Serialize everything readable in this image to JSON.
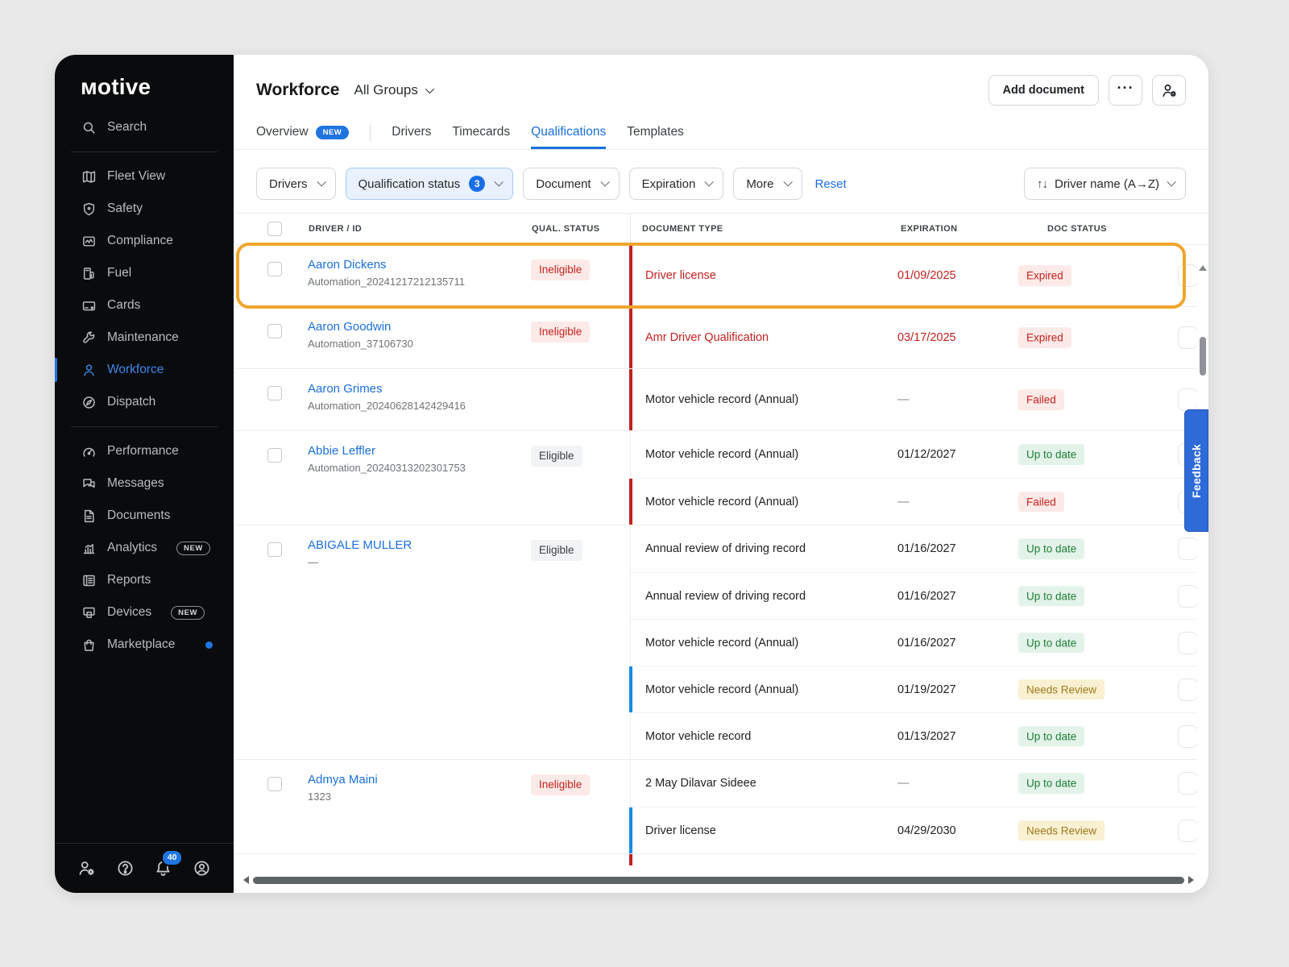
{
  "sidebar": {
    "logo_text": "ᴍotive",
    "search": {
      "label": "Search",
      "icon": "search"
    },
    "nav_primary": [
      {
        "label": "Fleet View",
        "icon": "map"
      },
      {
        "label": "Safety",
        "icon": "shield"
      },
      {
        "label": "Compliance",
        "icon": "compliance"
      },
      {
        "label": "Fuel",
        "icon": "fuel"
      },
      {
        "label": "Cards",
        "icon": "card"
      },
      {
        "label": "Maintenance",
        "icon": "wrench"
      },
      {
        "label": "Workforce",
        "icon": "person",
        "active": true
      },
      {
        "label": "Dispatch",
        "icon": "dispatch"
      }
    ],
    "nav_secondary": [
      {
        "label": "Performance",
        "icon": "gauge"
      },
      {
        "label": "Messages",
        "icon": "chat"
      },
      {
        "label": "Documents",
        "icon": "document"
      },
      {
        "label": "Analytics",
        "icon": "chart",
        "badge": "NEW"
      },
      {
        "label": "Reports",
        "icon": "report"
      },
      {
        "label": "Devices",
        "icon": "devices",
        "badge": "NEW"
      },
      {
        "label": "Marketplace",
        "icon": "bag",
        "dot": true
      }
    ],
    "footer_icons": [
      {
        "name": "manage-users",
        "icon": "person-gear"
      },
      {
        "name": "help",
        "icon": "help"
      },
      {
        "name": "notifications",
        "icon": "bell",
        "badge": "40"
      },
      {
        "name": "account",
        "icon": "avatar"
      }
    ]
  },
  "header": {
    "title": "Workforce",
    "group_selector": "All Groups",
    "add_document_label": "Add document",
    "more_label": "···"
  },
  "tabs": [
    {
      "label": "Overview",
      "badge": "NEW"
    },
    {
      "label": "Drivers"
    },
    {
      "label": "Timecards"
    },
    {
      "label": "Qualifications",
      "active": true
    },
    {
      "label": "Templates"
    }
  ],
  "filters": {
    "buttons": [
      {
        "label": "Drivers"
      },
      {
        "label": "Qualification status",
        "count": "3",
        "active": true
      },
      {
        "label": "Document"
      },
      {
        "label": "Expiration"
      },
      {
        "label": "More"
      }
    ],
    "reset_label": "Reset",
    "sort_glyph": "↑↓",
    "sort_label": "Driver name (A→Z)"
  },
  "table": {
    "headers": {
      "driver": "DRIVER / ID",
      "qual": "QUAL. STATUS",
      "doc_type": "DOCUMENT TYPE",
      "expiration": "EXPIRATION",
      "doc_status": "DOC STATUS"
    },
    "rows": [
      {
        "name": "Aaron Dickens",
        "id": "Automation_20241217212135711",
        "qual_status": "Ineligible",
        "qual_variant": "red",
        "highlighted": true,
        "docs": [
          {
            "type": "Driver license",
            "red": true,
            "expiration": "01/09/2025",
            "status": "Expired",
            "status_variant": "red",
            "bar": "red"
          }
        ]
      },
      {
        "name": "Aaron Goodwin",
        "id": "Automation_37106730",
        "qual_status": "Ineligible",
        "qual_variant": "red",
        "docs": [
          {
            "type": "Amr Driver Qualification",
            "red": true,
            "expiration": "03/17/2025",
            "status": "Expired",
            "status_variant": "red",
            "bar": "red"
          }
        ]
      },
      {
        "name": "Aaron Grimes",
        "id": "Automation_20240628142429416",
        "qual_status": "",
        "docs": [
          {
            "type": "Motor vehicle record (Annual)",
            "expiration": "—",
            "status": "Failed",
            "status_variant": "red",
            "bar": "red"
          }
        ]
      },
      {
        "name": "Abbie Leffler",
        "id": "Automation_20240313202301753",
        "qual_status": "Eligible",
        "qual_variant": "gray",
        "docs": [
          {
            "type": "Motor vehicle record (Annual)",
            "expiration": "01/12/2027",
            "status": "Up to date",
            "status_variant": "green"
          },
          {
            "type": "Motor vehicle record (Annual)",
            "expiration": "—",
            "status": "Failed",
            "status_variant": "red",
            "bar": "red"
          }
        ]
      },
      {
        "name": "ABIGALE MULLER",
        "id": "—",
        "qual_status": "Eligible",
        "qual_variant": "gray",
        "docs": [
          {
            "type": "Annual review of driving record",
            "expiration": "01/16/2027",
            "status": "Up to date",
            "status_variant": "green"
          },
          {
            "type": "Annual review of driving record",
            "expiration": "01/16/2027",
            "status": "Up to date",
            "status_variant": "green"
          },
          {
            "type": "Motor vehicle record (Annual)",
            "expiration": "01/16/2027",
            "status": "Up to date",
            "status_variant": "green"
          },
          {
            "type": "Motor vehicle record (Annual)",
            "expiration": "01/19/2027",
            "status": "Needs Review",
            "status_variant": "yellow",
            "bar": "blue"
          },
          {
            "type": "Motor vehicle record",
            "expiration": "01/13/2027",
            "status": "Up to date",
            "status_variant": "green"
          }
        ]
      },
      {
        "name": "Admya Maini",
        "id": "1323",
        "qual_status": "Ineligible",
        "qual_variant": "red",
        "docs": [
          {
            "type": "2 May Dilavar Sideee",
            "expiration": "—",
            "status": "Up to date",
            "status_variant": "green"
          },
          {
            "type": "Driver license",
            "expiration": "04/29/2030",
            "status": "Needs Review",
            "status_variant": "yellow",
            "bar": "blue"
          }
        ]
      }
    ],
    "partial_row_bar": "red"
  },
  "feedback_label": "Feedback",
  "colors": {
    "accent": "#1f74e0",
    "red": "#c5221f",
    "green": "#1e7e3a",
    "yellow": "#9c7a1d",
    "highlight": "#f0a62e"
  }
}
